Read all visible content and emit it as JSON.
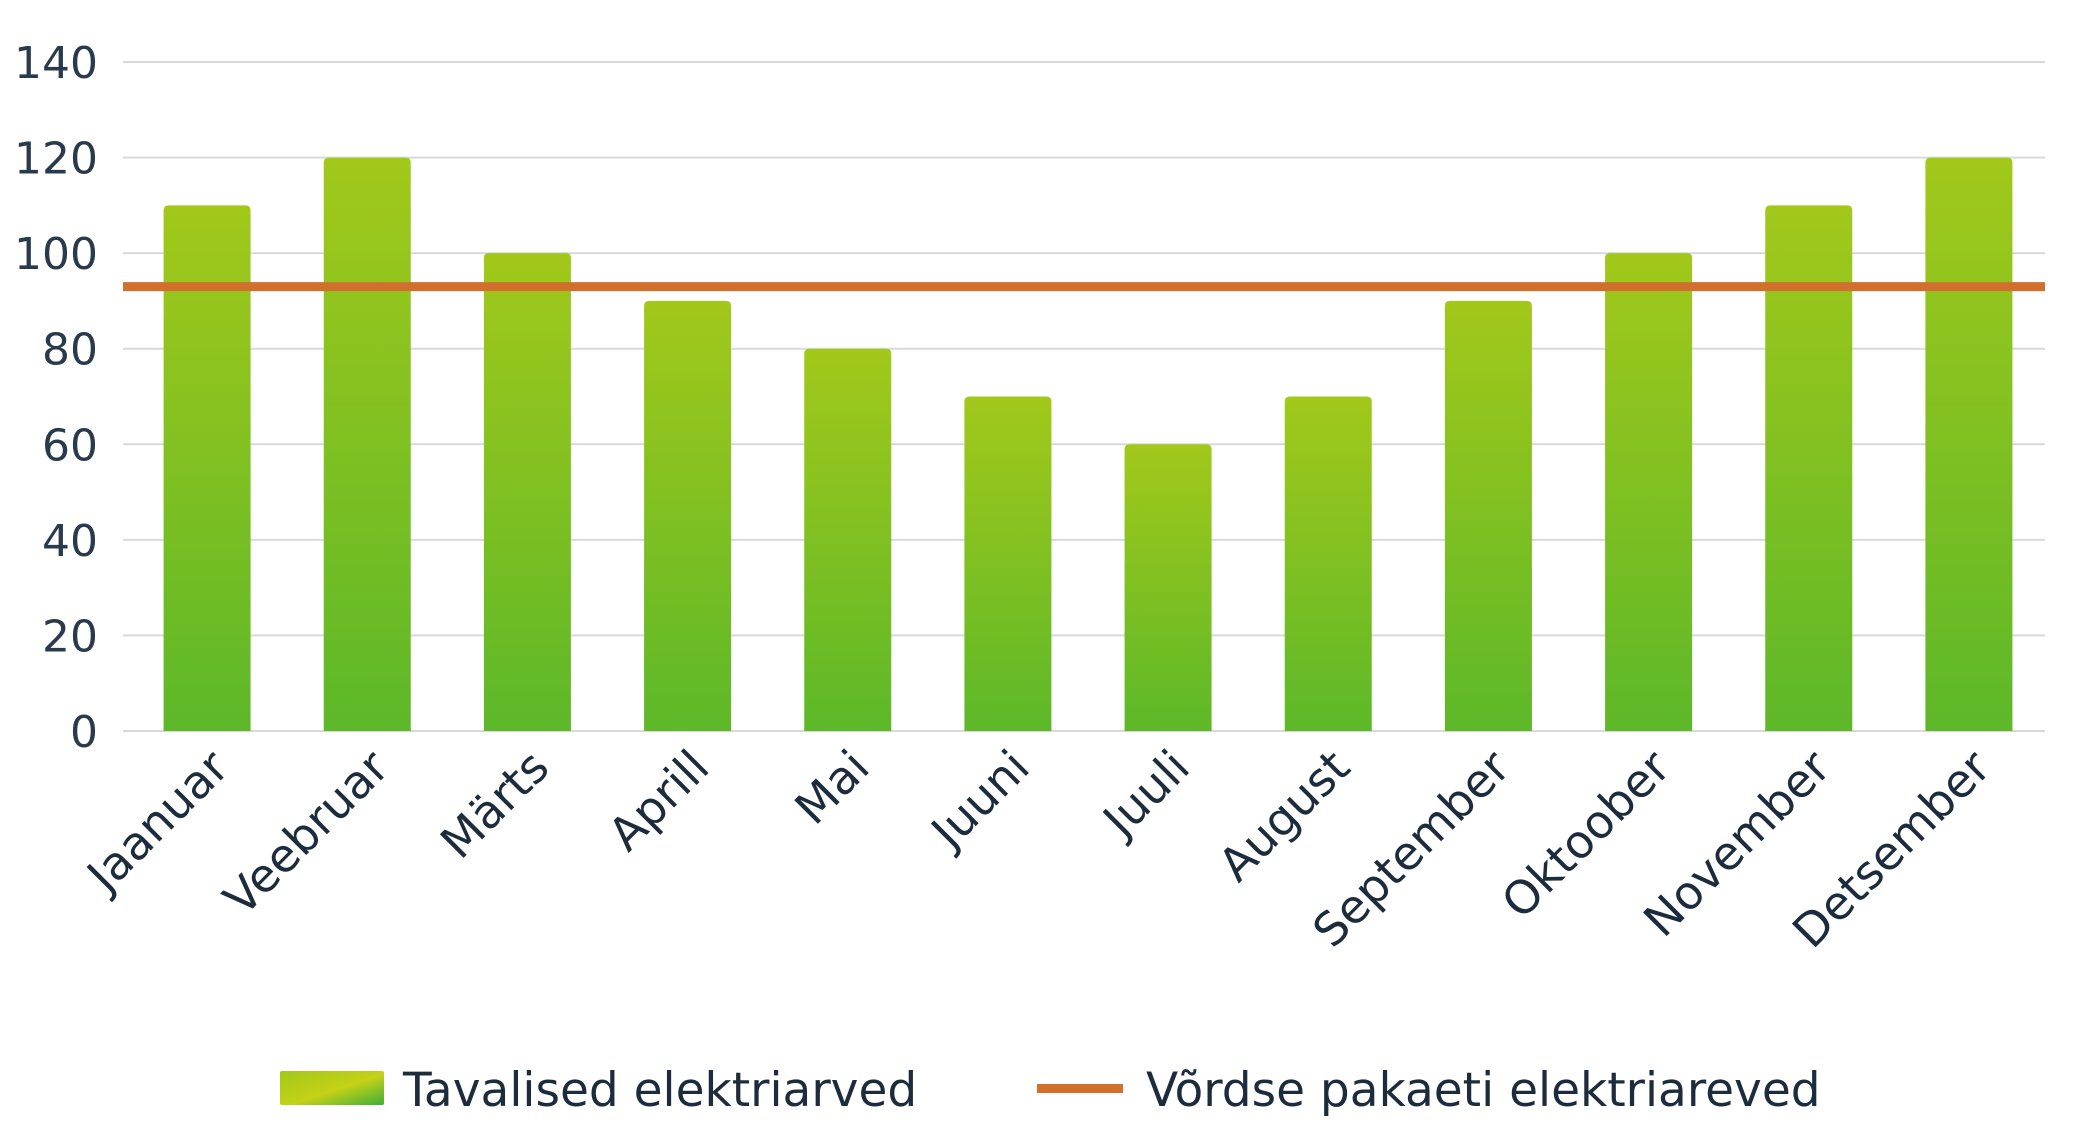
{
  "chart_data": {
    "type": "bar",
    "categories": [
      "Jaanuar",
      "Veebruar",
      "Märts",
      "Aprill",
      "Mai",
      "Juuni",
      "Juuli",
      "August",
      "September",
      "Oktoober",
      "November",
      "Detsember"
    ],
    "series": [
      {
        "name": "Tavalised elektriarved",
        "type": "bar",
        "values": [
          110,
          120,
          100,
          90,
          80,
          70,
          60,
          70,
          90,
          100,
          110,
          120
        ]
      },
      {
        "name": "Võrdse pakaeti elektriareved",
        "type": "line",
        "values": [
          93,
          93,
          93,
          93,
          93,
          93,
          93,
          93,
          93,
          93,
          93,
          93
        ]
      }
    ],
    "ylim": [
      0,
      140
    ],
    "yticks": [
      "0",
      "20",
      "40",
      "60",
      "80",
      "100",
      "120",
      "140"
    ],
    "grid": true,
    "legend_position": "bottom",
    "colors": {
      "bar_top": "#a2c81a",
      "bar_bottom": "#5db829",
      "line": "#d0702c",
      "grid": "#d9d9d9",
      "text": "#1d2c3d"
    }
  }
}
